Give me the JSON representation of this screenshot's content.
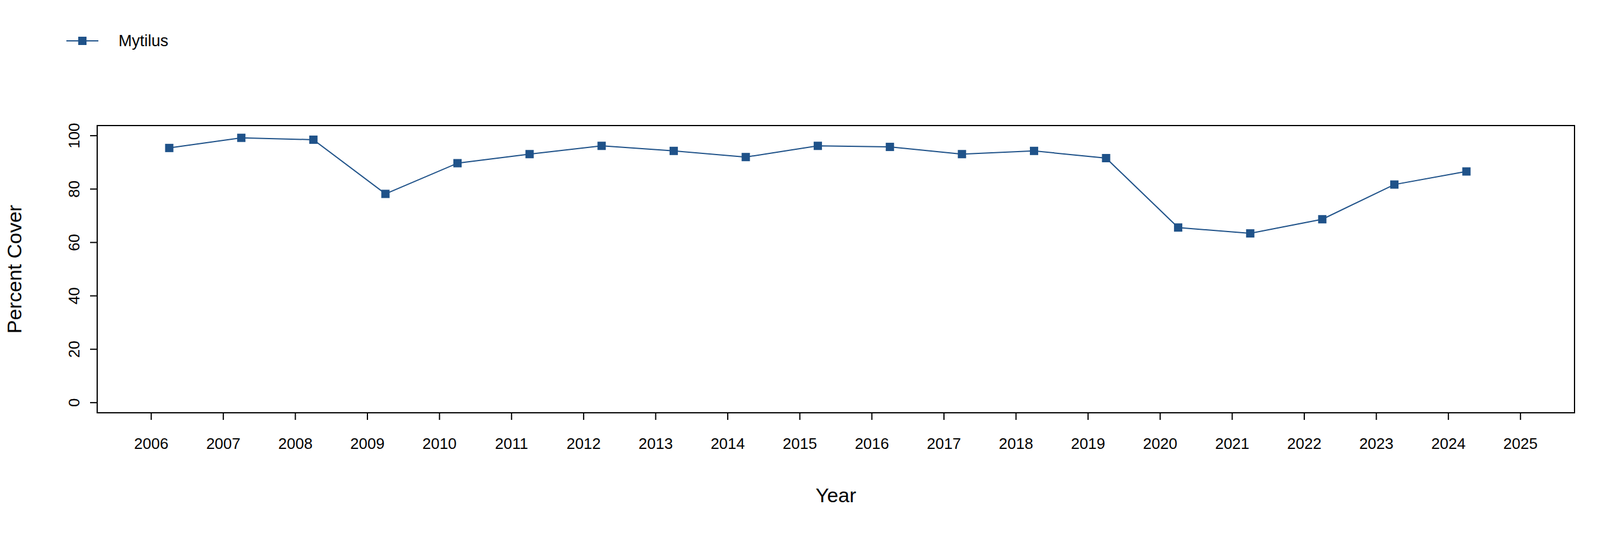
{
  "chart_data": {
    "type": "line",
    "x_label": "Year",
    "y_label": "Percent Cover",
    "x": [
      2006.25,
      2007.25,
      2008.25,
      2009.25,
      2010.25,
      2011.25,
      2012.25,
      2013.25,
      2014.25,
      2015.25,
      2016.25,
      2017.25,
      2018.25,
      2019.25,
      2020.25,
      2021.25,
      2022.25,
      2023.25,
      2024.25
    ],
    "series": [
      {
        "name": "Mytilus",
        "color": "#1f5289",
        "marker": "square",
        "values": [
          95.4,
          99.2,
          98.5,
          78.2,
          89.7,
          93.1,
          96.2,
          94.3,
          92.0,
          96.2,
          95.8,
          93.1,
          94.3,
          91.6,
          65.6,
          63.4,
          68.7,
          81.7,
          86.6
        ]
      }
    ],
    "xlim": [
      2005.25,
      2025.75
    ],
    "ylim": [
      -3.8,
      103.8
    ],
    "xticks": [
      2006,
      2007,
      2008,
      2009,
      2010,
      2011,
      2012,
      2013,
      2014,
      2015,
      2016,
      2017,
      2018,
      2019,
      2020,
      2021,
      2022,
      2023,
      2024,
      2025
    ],
    "yticks": [
      0,
      20,
      40,
      60,
      80,
      100
    ],
    "legend": "top-left"
  }
}
